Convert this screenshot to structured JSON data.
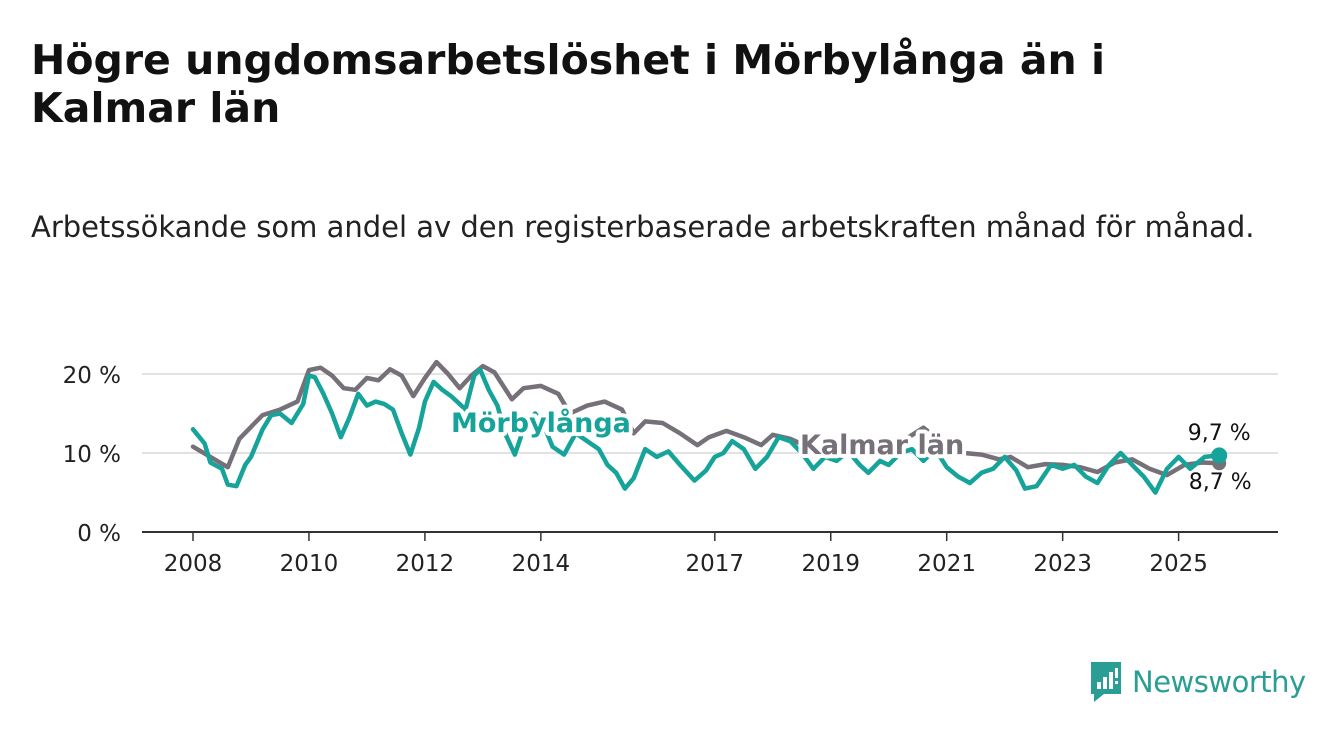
{
  "title": "Högre ungdomsarbetslöshet i Mörbylånga än i Kalmar län",
  "subtitle": "Arbetssökande som andel av den registerbaserade arbetskraften månad för månad.",
  "brand": {
    "name": "Newsworthy"
  },
  "colors": {
    "morbylanga": "#16a39a",
    "kalmar": "#767079",
    "grid": "#d9d9d9",
    "axis": "#333333",
    "brand": "#2a9d94"
  },
  "chart_data": {
    "type": "line",
    "title": "Högre ungdomsarbetslöshet i Mörbylånga än i Kalmar län",
    "xlabel": "",
    "ylabel": "",
    "ylim": [
      0,
      20
    ],
    "xlim": [
      2008.0,
      2025.8
    ],
    "y_ticks": [
      0,
      10,
      20
    ],
    "y_tick_labels": [
      "0 %",
      "10 %",
      "20 %"
    ],
    "x_ticks": [
      2008,
      2010,
      2012,
      2014,
      2017,
      2019,
      2021,
      2023,
      2025
    ],
    "x_tick_labels": [
      "2008",
      "2010",
      "2012",
      "2014",
      "2017",
      "2019",
      "2021",
      "2023",
      "2025"
    ],
    "grid": true,
    "series": [
      {
        "name": "Kalmar län",
        "label": "Kalmar län",
        "end_label": "8,7 %",
        "points": [
          [
            2008.0,
            10.8
          ],
          [
            2008.3,
            9.5
          ],
          [
            2008.6,
            8.2
          ],
          [
            2008.8,
            11.8
          ],
          [
            2009.0,
            13.3
          ],
          [
            2009.2,
            14.8
          ],
          [
            2009.5,
            15.5
          ],
          [
            2009.8,
            16.5
          ],
          [
            2010.0,
            20.5
          ],
          [
            2010.2,
            20.8
          ],
          [
            2010.4,
            19.8
          ],
          [
            2010.6,
            18.2
          ],
          [
            2010.8,
            18.0
          ],
          [
            2011.0,
            19.5
          ],
          [
            2011.2,
            19.2
          ],
          [
            2011.4,
            20.6
          ],
          [
            2011.6,
            19.8
          ],
          [
            2011.8,
            17.2
          ],
          [
            2012.0,
            19.5
          ],
          [
            2012.2,
            21.5
          ],
          [
            2012.4,
            20.0
          ],
          [
            2012.6,
            18.2
          ],
          [
            2012.8,
            19.8
          ],
          [
            2013.0,
            21.0
          ],
          [
            2013.2,
            20.2
          ],
          [
            2013.5,
            16.8
          ],
          [
            2013.7,
            18.2
          ],
          [
            2014.0,
            18.5
          ],
          [
            2014.3,
            17.5
          ],
          [
            2014.5,
            15.0
          ],
          [
            2014.8,
            16.0
          ],
          [
            2015.1,
            16.5
          ],
          [
            2015.4,
            15.5
          ],
          [
            2015.6,
            12.5
          ],
          [
            2015.8,
            14.0
          ],
          [
            2016.1,
            13.8
          ],
          [
            2016.4,
            12.5
          ],
          [
            2016.7,
            11.0
          ],
          [
            2016.9,
            12.0
          ],
          [
            2017.2,
            12.8
          ],
          [
            2017.5,
            12.0
          ],
          [
            2017.8,
            11.0
          ],
          [
            2018.0,
            12.3
          ],
          [
            2018.3,
            11.8
          ],
          [
            2018.6,
            10.8
          ],
          [
            2018.9,
            9.6
          ],
          [
            2019.1,
            10.0
          ],
          [
            2019.4,
            9.6
          ],
          [
            2019.7,
            10.6
          ],
          [
            2020.0,
            10.2
          ],
          [
            2020.3,
            11.8
          ],
          [
            2020.6,
            13.2
          ],
          [
            2020.8,
            12.0
          ],
          [
            2021.0,
            11.5
          ],
          [
            2021.3,
            10.0
          ],
          [
            2021.6,
            9.8
          ],
          [
            2021.9,
            9.2
          ],
          [
            2022.1,
            9.5
          ],
          [
            2022.4,
            8.2
          ],
          [
            2022.7,
            8.6
          ],
          [
            2023.0,
            8.5
          ],
          [
            2023.3,
            8.2
          ],
          [
            2023.6,
            7.6
          ],
          [
            2023.9,
            8.8
          ],
          [
            2024.2,
            9.2
          ],
          [
            2024.5,
            8.0
          ],
          [
            2024.8,
            7.2
          ],
          [
            2025.1,
            8.5
          ],
          [
            2025.4,
            8.8
          ],
          [
            2025.7,
            8.7
          ]
        ]
      },
      {
        "name": "Mörbylånga",
        "label": "Mörbylånga",
        "end_label": "9,7 %",
        "points": [
          [
            2008.0,
            13.0
          ],
          [
            2008.2,
            11.2
          ],
          [
            2008.3,
            8.8
          ],
          [
            2008.5,
            8.0
          ],
          [
            2008.6,
            6.0
          ],
          [
            2008.75,
            5.8
          ],
          [
            2008.9,
            8.5
          ],
          [
            2009.0,
            9.5
          ],
          [
            2009.2,
            13.0
          ],
          [
            2009.35,
            14.8
          ],
          [
            2009.5,
            15.0
          ],
          [
            2009.7,
            13.8
          ],
          [
            2009.9,
            16.2
          ],
          [
            2010.0,
            19.8
          ],
          [
            2010.1,
            19.6
          ],
          [
            2010.25,
            17.5
          ],
          [
            2010.4,
            15.0
          ],
          [
            2010.55,
            12.0
          ],
          [
            2010.7,
            14.5
          ],
          [
            2010.85,
            17.5
          ],
          [
            2011.0,
            16.0
          ],
          [
            2011.15,
            16.5
          ],
          [
            2011.3,
            16.2
          ],
          [
            2011.45,
            15.5
          ],
          [
            2011.6,
            12.5
          ],
          [
            2011.75,
            9.8
          ],
          [
            2011.9,
            13.2
          ],
          [
            2012.0,
            16.5
          ],
          [
            2012.15,
            19.0
          ],
          [
            2012.3,
            18.0
          ],
          [
            2012.45,
            17.2
          ],
          [
            2012.6,
            16.2
          ],
          [
            2012.7,
            15.5
          ],
          [
            2012.85,
            19.8
          ],
          [
            2012.95,
            20.6
          ],
          [
            2013.1,
            18.0
          ],
          [
            2013.25,
            16.0
          ],
          [
            2013.4,
            12.2
          ],
          [
            2013.55,
            9.8
          ],
          [
            2013.7,
            13.0
          ],
          [
            2013.9,
            15.0
          ],
          [
            2014.05,
            13.5
          ],
          [
            2014.2,
            10.8
          ],
          [
            2014.4,
            9.8
          ],
          [
            2014.6,
            12.5
          ],
          [
            2014.8,
            11.5
          ],
          [
            2015.0,
            10.5
          ],
          [
            2015.15,
            8.5
          ],
          [
            2015.3,
            7.5
          ],
          [
            2015.45,
            5.5
          ],
          [
            2015.6,
            6.8
          ],
          [
            2015.8,
            10.5
          ],
          [
            2016.0,
            9.5
          ],
          [
            2016.2,
            10.2
          ],
          [
            2016.4,
            8.5
          ],
          [
            2016.65,
            6.5
          ],
          [
            2016.85,
            7.8
          ],
          [
            2017.0,
            9.5
          ],
          [
            2017.15,
            10.0
          ],
          [
            2017.3,
            11.5
          ],
          [
            2017.5,
            10.5
          ],
          [
            2017.7,
            8.0
          ],
          [
            2017.9,
            9.5
          ],
          [
            2018.1,
            12.0
          ],
          [
            2018.3,
            11.5
          ],
          [
            2018.5,
            10.0
          ],
          [
            2018.7,
            8.0
          ],
          [
            2018.9,
            9.5
          ],
          [
            2019.1,
            9.0
          ],
          [
            2019.3,
            10.2
          ],
          [
            2019.5,
            8.5
          ],
          [
            2019.65,
            7.5
          ],
          [
            2019.85,
            9.0
          ],
          [
            2020.0,
            8.5
          ],
          [
            2020.2,
            10.0
          ],
          [
            2020.4,
            10.5
          ],
          [
            2020.6,
            9.0
          ],
          [
            2020.8,
            10.5
          ],
          [
            2021.0,
            8.2
          ],
          [
            2021.2,
            7.0
          ],
          [
            2021.4,
            6.2
          ],
          [
            2021.6,
            7.5
          ],
          [
            2021.8,
            8.0
          ],
          [
            2022.0,
            9.5
          ],
          [
            2022.2,
            7.8
          ],
          [
            2022.35,
            5.5
          ],
          [
            2022.55,
            5.8
          ],
          [
            2022.8,
            8.5
          ],
          [
            2023.0,
            8.0
          ],
          [
            2023.2,
            8.5
          ],
          [
            2023.4,
            7.0
          ],
          [
            2023.6,
            6.2
          ],
          [
            2023.8,
            8.5
          ],
          [
            2024.0,
            10.0
          ],
          [
            2024.2,
            8.5
          ],
          [
            2024.4,
            7.0
          ],
          [
            2024.6,
            5.0
          ],
          [
            2024.8,
            8.0
          ],
          [
            2025.0,
            9.5
          ],
          [
            2025.2,
            8.0
          ],
          [
            2025.45,
            9.5
          ],
          [
            2025.7,
            9.7
          ]
        ]
      }
    ]
  }
}
